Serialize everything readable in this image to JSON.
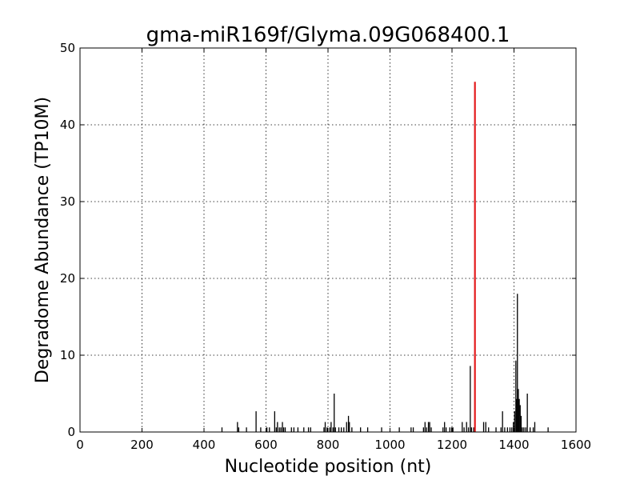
{
  "chart_data": {
    "type": "bar",
    "title": "gma-miR169f/Glyma.09G068400.1",
    "xlabel": "Nucleotide position (nt)",
    "ylabel": "Degradome Abundance (TP10M)",
    "xlim": [
      0,
      1600
    ],
    "ylim": [
      0,
      50
    ],
    "xticks": [
      0,
      200,
      400,
      600,
      800,
      1000,
      1200,
      1400,
      1600
    ],
    "yticks": [
      0,
      10,
      20,
      30,
      40,
      50
    ],
    "grid": true,
    "colors": {
      "background": "#ffffff",
      "bar": "#000000",
      "highlight": "#e31a1c",
      "grid": "#000000"
    },
    "series": [
      {
        "role": "background",
        "color": "#000000",
        "x": [
          458,
          508,
          512,
          537,
          568,
          583,
          603,
          611,
          628,
          633,
          637,
          643,
          648,
          653,
          657,
          662,
          682,
          690,
          703,
          722,
          737,
          744,
          787,
          791,
          797,
          806,
          810,
          816,
          820,
          824,
          835,
          843,
          851,
          860,
          866,
          869,
          877,
          905,
          928,
          973,
          1030,
          1068,
          1075,
          1108,
          1113,
          1118,
          1124,
          1128,
          1133,
          1171,
          1176,
          1181,
          1193,
          1199,
          1203,
          1233,
          1239,
          1247,
          1253,
          1259,
          1263,
          1270,
          1302,
          1309,
          1318,
          1342,
          1358,
          1363,
          1370,
          1379,
          1387,
          1393,
          1398,
          1402,
          1406,
          1409,
          1411,
          1414,
          1417,
          1420,
          1423,
          1427,
          1432,
          1438,
          1443,
          1452,
          1462,
          1467,
          1510
        ],
        "values": [
          0.6,
          1.3,
          0.6,
          0.6,
          2.7,
          0.6,
          0.6,
          0.6,
          2.7,
          0.6,
          1.3,
          0.6,
          0.6,
          1.3,
          0.6,
          0.6,
          0.6,
          0.6,
          0.6,
          0.6,
          0.6,
          0.6,
          0.6,
          1.3,
          0.6,
          0.6,
          1.3,
          0.6,
          5.0,
          0.6,
          0.6,
          0.6,
          0.6,
          1.3,
          2.1,
          1.3,
          0.6,
          0.6,
          0.6,
          0.6,
          0.6,
          0.6,
          0.6,
          0.6,
          1.3,
          0.6,
          1.3,
          1.3,
          0.6,
          0.6,
          1.3,
          0.6,
          0.6,
          0.6,
          0.6,
          1.3,
          0.6,
          1.3,
          0.6,
          8.6,
          0.6,
          0.6,
          1.3,
          1.3,
          0.6,
          0.6,
          0.6,
          2.7,
          0.6,
          0.6,
          0.6,
          0.6,
          1.3,
          2.7,
          9.3,
          4.3,
          18.0,
          5.6,
          4.3,
          3.5,
          2.1,
          0.6,
          0.6,
          0.6,
          5.0,
          0.6,
          0.6,
          1.3,
          0.6
        ]
      },
      {
        "role": "highlight",
        "color": "#e31a1c",
        "x": [
          1274
        ],
        "values": [
          45.6
        ]
      }
    ]
  }
}
